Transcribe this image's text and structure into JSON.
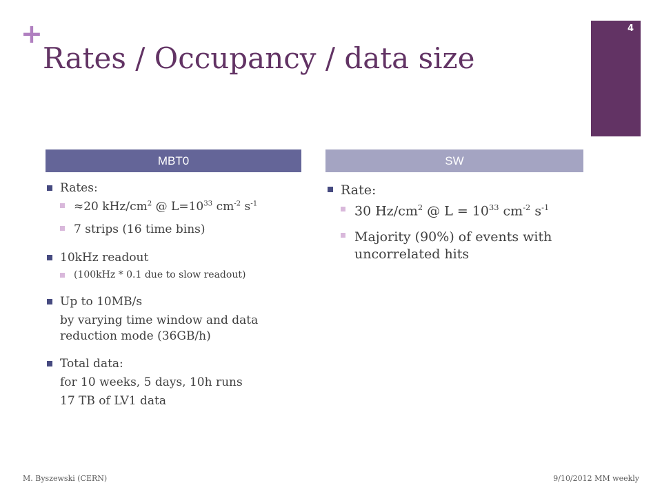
{
  "slide": {
    "plus_sign": "+",
    "title": "Rates / Occupancy / data size",
    "page_number": "4",
    "columns": [
      {
        "header": "MBT0"
      },
      {
        "header": "SW"
      }
    ],
    "left": {
      "rates_label": "Rates:",
      "rate_prefix": "≈20 kHz/cm",
      "rate_exp_cm": "2",
      "rate_mid": " @ L=10",
      "rate_exp_L": "33",
      "rate_cm": " cm",
      "rate_exp_cm2": "-2",
      "rate_s": " s",
      "rate_exp_s": "-1",
      "strips": "7 strips (16 time bins)",
      "readout": "10kHz readout",
      "readout_note": "(100kHz * 0.1  due to slow readout)",
      "upto": "Up to 10MB/s",
      "upto_note": "by varying time window and data reduction mode (36GB/h)",
      "total_label": "Total data:",
      "total_runs": "for 10 weeks, 5 days, 10h runs",
      "total_size": "17 TB of LV1 data"
    },
    "right": {
      "rate_label": "Rate:",
      "rate_prefix": "30 Hz/cm",
      "rate_exp_cm": "2",
      "rate_mid": " @ L = 10",
      "rate_exp_L": "33",
      "rate_cm": " cm",
      "rate_exp_cm2": "-2",
      "rate_s": " s",
      "rate_exp_s": "-1",
      "majority": "Majority (90%) of events with uncorrelated hits"
    },
    "footer": {
      "author": "M. Byszewski (CERN)",
      "date_meeting": "9/10/2012 MM weekly"
    }
  }
}
